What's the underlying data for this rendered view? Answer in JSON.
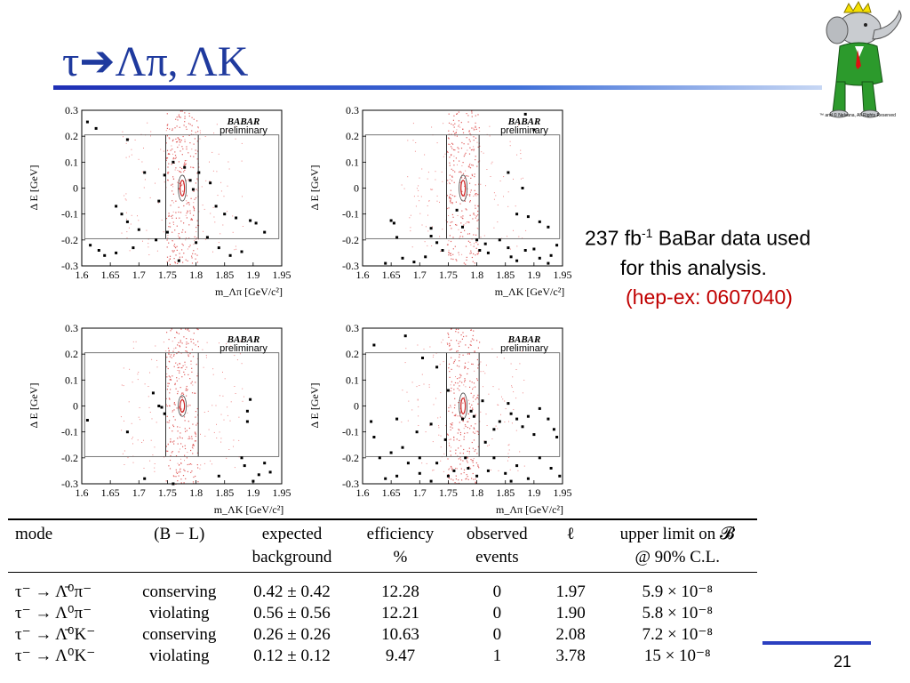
{
  "slide": {
    "title": "τ➔Λπ, ΛK",
    "page_number": "21",
    "mascot_caption": "™ and © Nelvana, All Rights Reserved"
  },
  "side_text": {
    "line1_pre": "237 fb",
    "line1_sup": "-1",
    "line1_post": " BaBar data used",
    "line2": "for this analysis.",
    "line3": "(hep-ex: 0607040)"
  },
  "plots_common": {
    "brand": "BABAR",
    "tag": "preliminary",
    "ylabel": "Δ E [GeV]",
    "yticks": [
      "0.3",
      "0.2",
      "0.1",
      "0",
      "-0.1",
      "-0.2",
      "-0.3"
    ],
    "xticks": [
      "1.6",
      "1.65",
      "1.7",
      "1.75",
      "1.8",
      "1.85",
      "1.9",
      "1.95"
    ]
  },
  "chart_data": [
    {
      "type": "scatter",
      "xlabel": "m_Λπ [GeV/c²]",
      "ylabel": "Δ E [GeV]",
      "xlim": [
        1.6,
        1.95
      ],
      "ylim": [
        -0.3,
        0.3
      ],
      "signal_box": {
        "x": [
          1.605,
          1.945
        ],
        "y": [
          -0.195,
          0.205
        ]
      },
      "signal_band": {
        "x": [
          1.747,
          1.804
        ]
      },
      "ellipse": {
        "x": 1.776,
        "y": 0.0,
        "rx": 0.007,
        "ry": 0.05
      },
      "points": [
        [
          1.61,
          0.255
        ],
        [
          1.625,
          0.23
        ],
        [
          1.68,
          0.187
        ],
        [
          1.71,
          0.06
        ],
        [
          1.735,
          -0.05
        ],
        [
          1.745,
          0.05
        ],
        [
          1.76,
          0.1
        ],
        [
          1.78,
          0.08
        ],
        [
          1.79,
          0.03
        ],
        [
          1.795,
          -0.005
        ],
        [
          1.805,
          0.06
        ],
        [
          1.825,
          0.02
        ],
        [
          1.835,
          -0.07
        ],
        [
          1.85,
          -0.1
        ],
        [
          1.87,
          -0.115
        ],
        [
          1.895,
          -0.125
        ],
        [
          1.905,
          -0.135
        ],
        [
          1.92,
          -0.17
        ],
        [
          1.66,
          -0.07
        ],
        [
          1.67,
          -0.1
        ],
        [
          1.68,
          -0.13
        ],
        [
          1.7,
          -0.16
        ],
        [
          1.615,
          -0.22
        ],
        [
          1.63,
          -0.24
        ],
        [
          1.64,
          -0.26
        ],
        [
          1.66,
          -0.25
        ],
        [
          1.69,
          -0.23
        ],
        [
          1.73,
          -0.2
        ],
        [
          1.75,
          -0.17
        ],
        [
          1.77,
          -0.28
        ],
        [
          1.8,
          -0.21
        ],
        [
          1.82,
          -0.19
        ],
        [
          1.84,
          -0.23
        ],
        [
          1.86,
          -0.26
        ],
        [
          1.88,
          -0.245
        ]
      ]
    },
    {
      "type": "scatter",
      "xlabel": "m_ΛK [GeV/c²]",
      "ylabel": "Δ E [GeV]",
      "xlim": [
        1.6,
        1.95
      ],
      "ylim": [
        -0.3,
        0.3
      ],
      "signal_box": {
        "x": [
          1.605,
          1.945
        ],
        "y": [
          -0.195,
          0.205
        ]
      },
      "signal_band": {
        "x": [
          1.747,
          1.804
        ]
      },
      "ellipse": {
        "x": 1.776,
        "y": 0.0,
        "rx": 0.007,
        "ry": 0.05
      },
      "points": [
        [
          1.885,
          0.285
        ],
        [
          1.9,
          0.225
        ],
        [
          1.855,
          0.06
        ],
        [
          1.88,
          0.0
        ],
        [
          1.87,
          -0.1
        ],
        [
          1.89,
          -0.11
        ],
        [
          1.91,
          -0.13
        ],
        [
          1.925,
          -0.15
        ],
        [
          1.65,
          -0.125
        ],
        [
          1.655,
          -0.135
        ],
        [
          1.66,
          -0.19
        ],
        [
          1.72,
          -0.155
        ],
        [
          1.72,
          -0.185
        ],
        [
          1.73,
          -0.21
        ],
        [
          1.74,
          -0.24
        ],
        [
          1.765,
          -0.085
        ],
        [
          1.775,
          -0.15
        ],
        [
          1.8,
          -0.2
        ],
        [
          1.805,
          -0.24
        ],
        [
          1.815,
          -0.215
        ],
        [
          1.82,
          -0.25
        ],
        [
          1.84,
          -0.2
        ],
        [
          1.855,
          -0.23
        ],
        [
          1.86,
          -0.265
        ],
        [
          1.87,
          -0.28
        ],
        [
          1.885,
          -0.24
        ],
        [
          1.9,
          -0.235
        ],
        [
          1.91,
          -0.27
        ],
        [
          1.93,
          -0.26
        ],
        [
          1.94,
          -0.22
        ],
        [
          1.64,
          -0.29
        ],
        [
          1.67,
          -0.27
        ],
        [
          1.69,
          -0.285
        ],
        [
          1.71,
          -0.265
        ],
        [
          1.925,
          -0.29
        ]
      ]
    },
    {
      "type": "scatter",
      "xlabel": "m_ΛK [GeV/c²]",
      "ylabel": "Δ E [GeV]",
      "xlim": [
        1.6,
        1.95
      ],
      "ylim": [
        -0.3,
        0.3
      ],
      "signal_box": {
        "x": [
          1.605,
          1.945
        ],
        "y": [
          -0.195,
          0.205
        ]
      },
      "signal_band": {
        "x": [
          1.747,
          1.804
        ]
      },
      "ellipse": {
        "x": 1.776,
        "y": 0.0,
        "rx": 0.007,
        "ry": 0.04
      },
      "points": [
        [
          1.61,
          -0.055
        ],
        [
          1.68,
          -0.1
        ],
        [
          1.725,
          0.05
        ],
        [
          1.735,
          0.0
        ],
        [
          1.74,
          -0.005
        ],
        [
          1.745,
          -0.03
        ],
        [
          1.895,
          0.025
        ],
        [
          1.89,
          -0.02
        ],
        [
          1.89,
          -0.06
        ],
        [
          1.88,
          -0.2
        ],
        [
          1.885,
          -0.23
        ],
        [
          1.91,
          -0.265
        ],
        [
          1.92,
          -0.22
        ],
        [
          1.93,
          -0.255
        ],
        [
          1.71,
          -0.28
        ],
        [
          1.76,
          -0.3
        ],
        [
          1.84,
          -0.27
        ],
        [
          1.9,
          -0.29
        ]
      ]
    },
    {
      "type": "scatter",
      "xlabel": "m_Λπ [GeV/c²]",
      "ylabel": "Δ E [GeV]",
      "xlim": [
        1.6,
        1.95
      ],
      "ylim": [
        -0.3,
        0.3
      ],
      "signal_box": {
        "x": [
          1.605,
          1.945
        ],
        "y": [
          -0.195,
          0.205
        ]
      },
      "signal_band": {
        "x": [
          1.747,
          1.804
        ]
      },
      "ellipse": {
        "x": 1.776,
        "y": 0.0,
        "rx": 0.007,
        "ry": 0.05
      },
      "points": [
        [
          1.62,
          0.235
        ],
        [
          1.675,
          0.27
        ],
        [
          1.705,
          0.185
        ],
        [
          1.73,
          0.15
        ],
        [
          1.75,
          0.06
        ],
        [
          1.775,
          -0.05
        ],
        [
          1.79,
          -0.02
        ],
        [
          1.795,
          -0.04
        ],
        [
          1.81,
          0.02
        ],
        [
          1.83,
          -0.09
        ],
        [
          1.84,
          -0.06
        ],
        [
          1.855,
          0.01
        ],
        [
          1.86,
          -0.03
        ],
        [
          1.87,
          -0.05
        ],
        [
          1.88,
          -0.08
        ],
        [
          1.89,
          -0.04
        ],
        [
          1.9,
          -0.11
        ],
        [
          1.91,
          -0.01
        ],
        [
          1.925,
          -0.05
        ],
        [
          1.935,
          -0.09
        ],
        [
          1.94,
          -0.12
        ],
        [
          1.615,
          -0.06
        ],
        [
          1.62,
          -0.12
        ],
        [
          1.63,
          -0.2
        ],
        [
          1.65,
          -0.18
        ],
        [
          1.66,
          -0.05
        ],
        [
          1.67,
          -0.16
        ],
        [
          1.68,
          -0.22
        ],
        [
          1.695,
          -0.1
        ],
        [
          1.7,
          -0.2
        ],
        [
          1.72,
          -0.07
        ],
        [
          1.73,
          -0.22
        ],
        [
          1.745,
          -0.13
        ],
        [
          1.76,
          -0.25
        ],
        [
          1.78,
          -0.2
        ],
        [
          1.8,
          -0.27
        ],
        [
          1.815,
          -0.14
        ],
        [
          1.83,
          -0.2
        ],
        [
          1.85,
          -0.26
        ],
        [
          1.87,
          -0.23
        ],
        [
          1.89,
          -0.28
        ],
        [
          1.91,
          -0.2
        ],
        [
          1.93,
          -0.24
        ],
        [
          1.945,
          -0.27
        ],
        [
          1.64,
          -0.28
        ],
        [
          1.66,
          -0.27
        ],
        [
          1.7,
          -0.26
        ],
        [
          1.72,
          -0.29
        ],
        [
          1.75,
          -0.27
        ],
        [
          1.785,
          -0.24
        ],
        [
          1.82,
          -0.25
        ],
        [
          1.86,
          -0.29
        ]
      ]
    }
  ],
  "table": {
    "headers": [
      {
        "main": "mode",
        "sub": ""
      },
      {
        "main": "(B − L)",
        "sub": ""
      },
      {
        "main": "expected",
        "sub": "background"
      },
      {
        "main": "efficiency",
        "sub": "%"
      },
      {
        "main": "observed",
        "sub": "events"
      },
      {
        "main": "ℓ",
        "sub": ""
      },
      {
        "main": "upper limit on 𝓑",
        "sub": "@ 90% C.L."
      }
    ],
    "rows": [
      [
        "τ⁻ → Λ̄⁰π⁻",
        "conserving",
        "0.42 ± 0.42",
        "12.28",
        "0",
        "1.97",
        "5.9 × 10⁻⁸"
      ],
      [
        "τ⁻ → Λ⁰π⁻",
        "violating",
        "0.56 ± 0.56",
        "12.21",
        "0",
        "1.90",
        "5.8 × 10⁻⁸"
      ],
      [
        "τ⁻ → Λ̄⁰K⁻",
        "conserving",
        "0.26 ± 0.26",
        "10.63",
        "0",
        "2.08",
        "7.2 × 10⁻⁸"
      ],
      [
        "τ⁻ → Λ⁰K⁻",
        "violating",
        "0.12 ± 0.12",
        "9.47",
        "1",
        "3.78",
        "15 × 10⁻⁸"
      ]
    ]
  }
}
